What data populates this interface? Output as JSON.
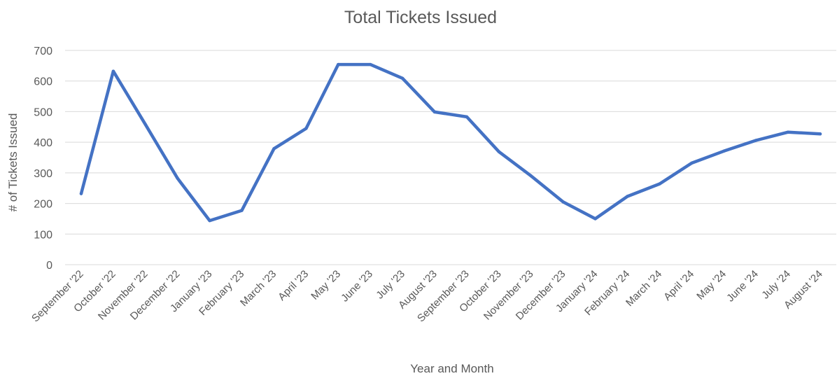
{
  "chart_data": {
    "type": "line",
    "title": "Total Tickets Issued",
    "xlabel": "Year and Month",
    "ylabel": "# of Tickets Issued",
    "ylim": [
      0,
      700
    ],
    "yticks": [
      0,
      100,
      200,
      300,
      400,
      500,
      600,
      700
    ],
    "grid": true,
    "legend": "none",
    "color": "#4472C4",
    "categories": [
      "September '22",
      "October '22",
      "November '22",
      "December '22",
      "January '23",
      "February '23",
      "March '23",
      "April '23",
      "May '23",
      "June '23",
      "July '23",
      "August '23",
      "September '23",
      "October '23",
      "November '23",
      "December '23",
      "January '24",
      "February '24",
      "March '24",
      "April '24",
      "May '24",
      "June '24",
      "July '24",
      "August '24"
    ],
    "series": [
      {
        "values": [
          232,
          632,
          458,
          282,
          144,
          177,
          379,
          445,
          654,
          654,
          609,
          499,
          483,
          369,
          290,
          205,
          150,
          223,
          264,
          332,
          371,
          406,
          433,
          427
        ]
      }
    ]
  }
}
